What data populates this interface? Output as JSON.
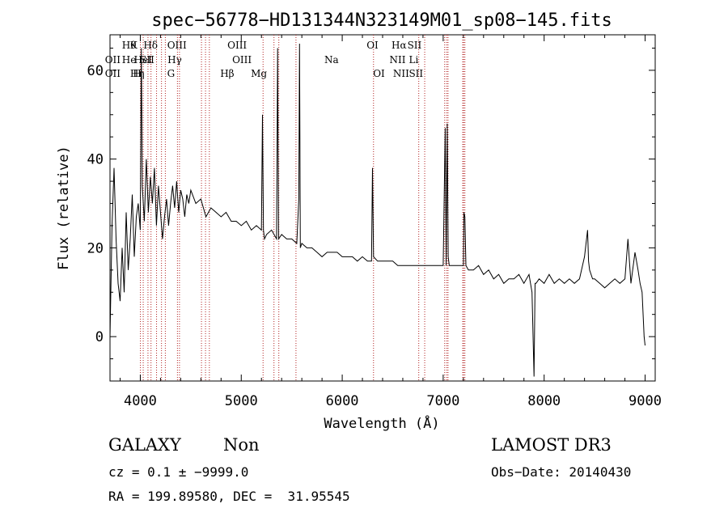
{
  "chart_data": {
    "type": "line",
    "title": "spec−56778−HD131344N323149M01_sp08−145.fits",
    "xlabel": "Wavelength (Å)",
    "ylabel": "Flux (relative)",
    "xlim": [
      3700,
      9100
    ],
    "ylim": [
      -10,
      68
    ],
    "xticks": [
      4000,
      5000,
      6000,
      7000,
      8000,
      9000
    ],
    "yticks": [
      0,
      20,
      40,
      60
    ],
    "grid": false,
    "series": [
      {
        "name": "spectrum",
        "x": [
          3700,
          3720,
          3740,
          3760,
          3780,
          3800,
          3820,
          3840,
          3860,
          3880,
          3900,
          3920,
          3940,
          3960,
          3980,
          4000,
          4010,
          4020,
          4040,
          4060,
          4080,
          4100,
          4120,
          4140,
          4160,
          4180,
          4200,
          4220,
          4240,
          4260,
          4280,
          4300,
          4320,
          4340,
          4360,
          4380,
          4400,
          4420,
          4440,
          4460,
          4480,
          4500,
          4550,
          4600,
          4650,
          4700,
          4750,
          4800,
          4850,
          4900,
          4950,
          5000,
          5050,
          5100,
          5150,
          5200,
          5210,
          5220,
          5230,
          5250,
          5300,
          5350,
          5360,
          5370,
          5400,
          5450,
          5500,
          5550,
          5570,
          5577,
          5585,
          5600,
          5650,
          5700,
          5750,
          5800,
          5850,
          5900,
          5950,
          6000,
          6050,
          6100,
          6150,
          6200,
          6250,
          6290,
          6300,
          6310,
          6350,
          6400,
          6450,
          6500,
          6550,
          6600,
          6650,
          6700,
          6750,
          6800,
          6850,
          6900,
          6950,
          7000,
          7020,
          7030,
          7040,
          7050,
          7060,
          7100,
          7150,
          7200,
          7205,
          7215,
          7225,
          7250,
          7300,
          7350,
          7400,
          7450,
          7500,
          7550,
          7600,
          7650,
          7700,
          7750,
          7800,
          7850,
          7880,
          7900,
          7910,
          7920,
          7950,
          8000,
          8050,
          8100,
          8150,
          8200,
          8250,
          8300,
          8350,
          8400,
          8430,
          8440,
          8450,
          8480,
          8500,
          8550,
          8600,
          8650,
          8700,
          8750,
          8800,
          8830,
          8860,
          8900,
          8930,
          8950,
          8970,
          8990,
          9000
        ],
        "values": [
          0,
          25,
          38,
          22,
          12,
          8,
          20,
          10,
          28,
          15,
          22,
          32,
          18,
          27,
          30,
          24,
          65,
          34,
          26,
          40,
          28,
          36,
          30,
          38,
          25,
          34,
          28,
          22,
          27,
          31,
          25,
          30,
          34,
          29,
          35,
          28,
          33,
          31,
          27,
          32,
          30,
          33,
          30,
          31,
          27,
          29,
          28,
          27,
          28,
          26,
          26,
          25,
          26,
          24,
          25,
          24,
          50,
          24,
          22,
          23,
          24,
          22,
          65,
          22,
          23,
          22,
          22,
          21,
          31,
          66,
          20,
          21,
          20,
          20,
          19,
          18,
          19,
          19,
          19,
          18,
          18,
          18,
          17,
          18,
          17,
          17,
          38,
          18,
          17,
          17,
          17,
          17,
          16,
          16,
          16,
          16,
          16,
          16,
          16,
          16,
          16,
          16,
          47,
          16,
          48,
          18,
          16,
          16,
          16,
          16,
          28,
          27,
          16,
          15,
          15,
          16,
          14,
          15,
          13,
          14,
          12,
          13,
          13,
          14,
          12,
          14,
          10,
          -9,
          12,
          12,
          13,
          12,
          14,
          12,
          13,
          12,
          13,
          12,
          13,
          18,
          24,
          17,
          15,
          13,
          13,
          12,
          11,
          12,
          13,
          12,
          13,
          22,
          12,
          19,
          15,
          12,
          10,
          0,
          -2
        ]
      }
    ],
    "line_markers": [
      {
        "x": 3727,
        "label": "OII",
        "row": 2
      },
      {
        "x": 3727,
        "label": "OII",
        "row": 3
      },
      {
        "x": 3889,
        "label": "Hθ",
        "row": 1
      },
      {
        "x": 3889,
        "label": "He",
        "row": 2
      },
      {
        "x": 3934,
        "label": "K",
        "row": 1
      },
      {
        "x": 3970,
        "label": "Hη",
        "row": 3
      },
      {
        "x": 4026,
        "label": "HeI",
        "row": 2
      },
      {
        "x": 4069,
        "label": "SII",
        "row": 2
      },
      {
        "x": 4102,
        "label": "Hδ",
        "row": 1
      },
      {
        "x": 3969,
        "label": "H",
        "row": 3
      },
      {
        "x": 4363,
        "label": "OIII",
        "row": 1
      },
      {
        "x": 4341,
        "label": "Hγ",
        "row": 2
      },
      {
        "x": 4304,
        "label": "G",
        "row": 3
      },
      {
        "x": 4861,
        "label": "Hβ",
        "row": 3
      },
      {
        "x": 4959,
        "label": "OIII",
        "row": 1
      },
      {
        "x": 5007,
        "label": "OIII",
        "row": 2
      },
      {
        "x": 5175,
        "label": "Mg",
        "row": 3
      },
      {
        "x": 5894,
        "label": "Na",
        "row": 2
      },
      {
        "x": 6300,
        "label": "OI",
        "row": 1
      },
      {
        "x": 6364,
        "label": "OI",
        "row": 3
      },
      {
        "x": 6563,
        "label": "Hα",
        "row": 1
      },
      {
        "x": 6548,
        "label": "NII",
        "row": 2
      },
      {
        "x": 6583,
        "label": "NII",
        "row": 3
      },
      {
        "x": 6716,
        "label": "SII",
        "row": 1
      },
      {
        "x": 6708,
        "label": "Li",
        "row": 2
      },
      {
        "x": 6731,
        "label": "SII",
        "row": 3
      }
    ],
    "marker_positions": [
      4001,
      4029,
      4076,
      4106,
      4161,
      4210,
      4248,
      4368,
      4388,
      4606,
      4646,
      4684,
      5216,
      5324,
      5372,
      5542,
      6310,
      6758,
      6817,
      7015,
      7035,
      7048,
      7194,
      7202,
      7215
    ]
  },
  "info": {
    "class": "GALAXY",
    "subclass": "Non",
    "survey": "LAMOST DR3",
    "cz": "cz = 0.1 ± −9999.0",
    "obs_date": "Obs−Date: 20140430",
    "radec": "RA = 199.89580, DEC =  31.95545"
  },
  "colors": {
    "spectrum": "#000000",
    "marker": "#b22222",
    "axes": "#000000"
  }
}
